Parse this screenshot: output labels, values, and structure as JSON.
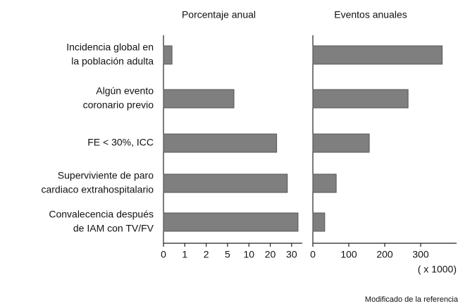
{
  "chart_data": [
    {
      "type": "bar",
      "orientation": "horizontal",
      "title": "Porcentaje anual",
      "categories": [
        [
          "Incidencia global en",
          "la población adulta"
        ],
        [
          "Algún evento",
          "coronario previo"
        ],
        [
          "FE < 30%, ICC"
        ],
        [
          "Superviviente de paro",
          "cardiaco extrahospitalario"
        ],
        [
          "Convalecencia después",
          "de IAM con TV/FV"
        ]
      ],
      "values": [
        0.4,
        6.5,
        23,
        28,
        33
      ],
      "color": "#7f7f7f",
      "scale": "piecewise",
      "xlim": [
        0,
        35
      ],
      "xticks": [
        0,
        1,
        2,
        5,
        10,
        20,
        30
      ]
    },
    {
      "type": "bar",
      "orientation": "horizontal",
      "title": "Eventos anuales",
      "values": [
        360,
        265,
        157,
        65,
        33
      ],
      "color": "#7f7f7f",
      "scale": "linear",
      "xlim": [
        0,
        400
      ],
      "xticks": [
        0,
        100,
        200,
        300
      ],
      "xlabel": "( x 1000)"
    }
  ],
  "footnote": "Modificado de la referencia"
}
